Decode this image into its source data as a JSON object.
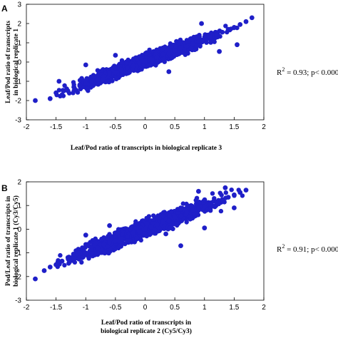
{
  "chart_data": [
    {
      "type": "scatter",
      "panel_label": "A",
      "xlabel": "Leaf/Pod ratio of transcripts in biological replicate  3",
      "ylabel_lines": [
        "Leaf/Pod ratio of transcripts",
        "in biological replicate  1"
      ],
      "annotation_prefix": "R",
      "annotation_sup": "2",
      "annotation_rest": " = 0.93; p< 0.000",
      "xlim": [
        -2,
        2
      ],
      "ylim": [
        -3,
        3
      ],
      "x_ticks": [
        "-2",
        "-1.5",
        "-1",
        "-0.5",
        "0",
        "0.5",
        "1",
        "1.5",
        "2"
      ],
      "y_ticks": [
        "3",
        "2",
        "1",
        "0",
        "-1",
        "-2",
        "-3"
      ],
      "point_color": "#1f1fc8",
      "trend": {
        "slope": 1.15,
        "intercept": 0.05
      },
      "series": [
        {
          "x": [
            -1.85,
            -1.6,
            -1.5,
            -1.4,
            -1.3,
            -1.2,
            -1.1,
            -1.0,
            -0.9,
            -0.8,
            -0.7,
            -0.6,
            -0.5,
            -0.4,
            -0.3,
            -0.2,
            -0.1,
            0.0,
            0.1,
            0.2,
            0.3,
            0.4,
            0.5,
            0.6,
            0.7,
            0.8,
            0.9,
            1.0,
            1.1,
            1.2,
            1.3,
            1.4,
            1.5,
            1.6,
            1.7,
            1.8
          ],
          "y": [
            -2.0,
            -1.9,
            -1.6,
            -1.7,
            -1.5,
            -1.3,
            -1.2,
            -1.1,
            -1.0,
            -0.9,
            -0.75,
            -0.6,
            -0.55,
            -0.4,
            -0.3,
            -0.2,
            -0.05,
            0.05,
            0.15,
            0.25,
            0.4,
            0.45,
            0.6,
            0.75,
            0.8,
            0.95,
            1.05,
            1.2,
            1.3,
            1.4,
            1.55,
            1.7,
            1.8,
            1.95,
            2.1,
            2.3
          ]
        },
        {
          "x": [
            -1.0,
            -0.5,
            0.4,
            1.55,
            0.95,
            -1.45,
            1.25
          ],
          "y": [
            -0.15,
            0.35,
            -0.5,
            0.9,
            2.0,
            -1.0,
            0.55
          ]
        }
      ]
    },
    {
      "type": "scatter",
      "panel_label": "B",
      "xlabel_lines": [
        "Leaf/Pod ratio of transcripts in",
        "biological replicate  2 (Cy5/Cy3)"
      ],
      "ylabel_lines": [
        "Pod/Leaf ratio of transcripts in",
        "biological replicate  1 (Cy3/Cy5)"
      ],
      "annotation_prefix": "R",
      "annotation_sup": "2",
      "annotation_rest": " = 0.91; p< 0.000",
      "xlim": [
        -2,
        2
      ],
      "ylim": [
        -3,
        2
      ],
      "x_ticks": [
        "-2",
        "-1.5",
        "-1",
        "-0.5",
        "0",
        "0.5",
        "1",
        "1.5",
        "2"
      ],
      "y_ticks": [
        "2",
        "1",
        "0",
        "-1",
        "-2",
        "-3"
      ],
      "point_color": "#1f1fc8",
      "trend": {
        "slope": 0.98,
        "intercept": 0.02
      },
      "series": [
        {
          "x": [
            -1.85,
            -1.7,
            -1.6,
            -1.5,
            -1.4,
            -1.3,
            -1.2,
            -1.1,
            -1.0,
            -0.9,
            -0.8,
            -0.7,
            -0.6,
            -0.5,
            -0.4,
            -0.3,
            -0.2,
            -0.1,
            0.0,
            0.1,
            0.2,
            0.3,
            0.4,
            0.5,
            0.6,
            0.7,
            0.8,
            0.9,
            1.0,
            1.1,
            1.2,
            1.3,
            1.4,
            1.5,
            1.6,
            1.7
          ],
          "y": [
            -2.1,
            -1.75,
            -1.6,
            -1.5,
            -1.35,
            -1.2,
            -1.25,
            -1.0,
            -1.0,
            -0.85,
            -0.8,
            -0.65,
            -0.55,
            -0.5,
            -0.4,
            -0.3,
            -0.15,
            -0.1,
            0.0,
            0.1,
            0.2,
            0.3,
            0.35,
            0.5,
            0.55,
            0.7,
            0.8,
            0.9,
            0.95,
            1.05,
            1.15,
            1.25,
            1.35,
            1.45,
            1.55,
            1.65
          ]
        },
        {
          "x": [
            0.6,
            0.9,
            1.0,
            -0.6,
            1.35,
            -1.0,
            1.5,
            0.35
          ],
          "y": [
            -0.7,
            1.6,
            0.05,
            0.15,
            1.75,
            -0.25,
            0.9,
            -0.2
          ]
        }
      ]
    }
  ]
}
